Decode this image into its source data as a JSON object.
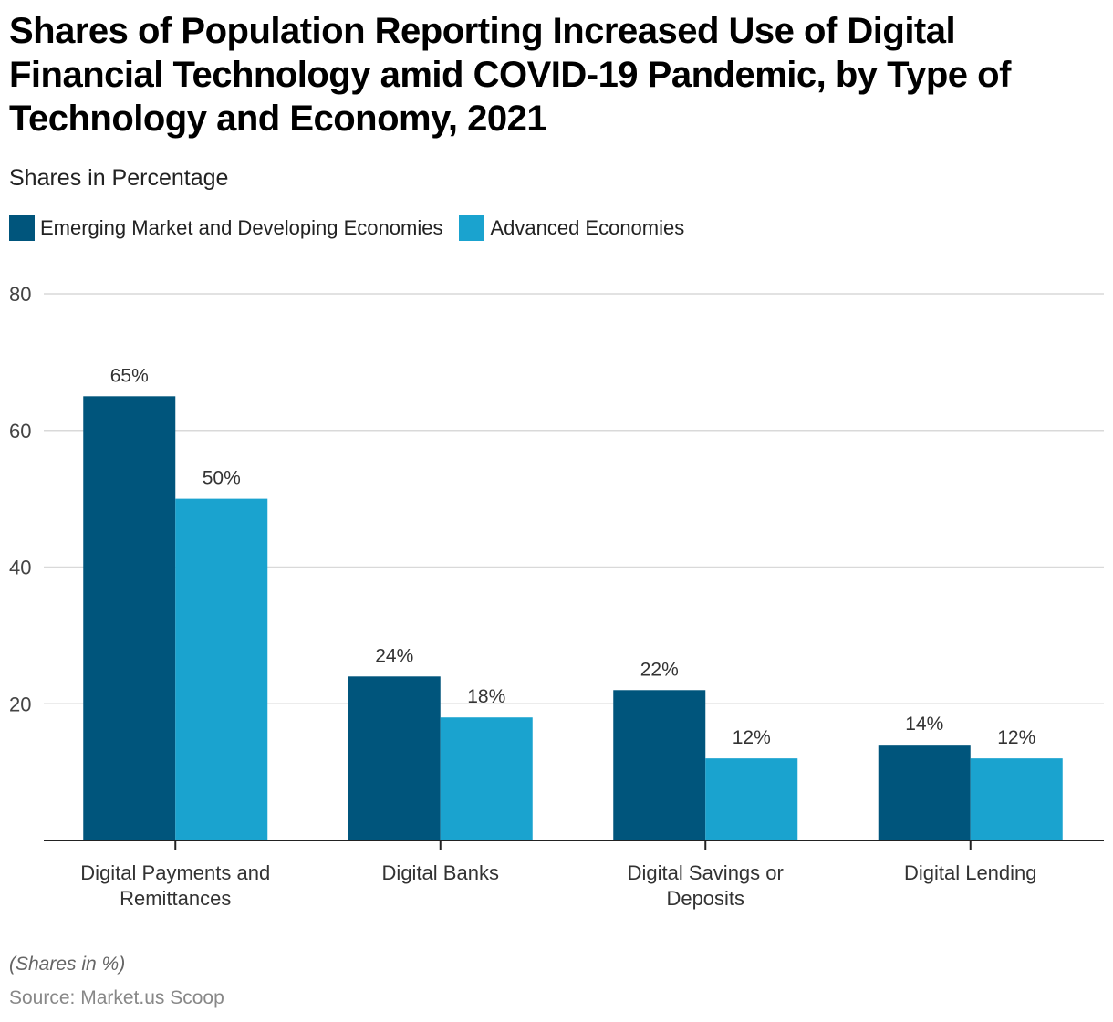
{
  "header": {
    "title": "Shares of Population Reporting Increased Use of Digital Financial Technology amid COVID-19 Pandemic, by Type of Technology and Economy, 2021",
    "subtitle": "Shares in Percentage"
  },
  "footer": {
    "note": "(Shares in %)",
    "source": "Source: Market.us Scoop"
  },
  "colors": {
    "emerging": "#00557C",
    "advanced": "#1AA3CF",
    "grid": "#D9D9D9",
    "axis": "#222222",
    "text": "#333333"
  },
  "chart_data": {
    "type": "bar",
    "title": "Shares of Population Reporting Increased Use of Digital Financial Technology amid COVID-19 Pandemic, by Type of Technology and Economy, 2021",
    "subtitle": "Shares in Percentage",
    "xlabel": "",
    "ylabel": "",
    "categories": [
      "Digital Payments and Remittances",
      "Digital Banks",
      "Digital Savings or Deposits",
      "Digital Lending"
    ],
    "category_lines": [
      [
        "Digital Payments and",
        "Remittances"
      ],
      [
        "Digital Banks"
      ],
      [
        "Digital Savings or",
        "Deposits"
      ],
      [
        "Digital Lending"
      ]
    ],
    "series": [
      {
        "name": "Emerging Market and Developing Economies",
        "values": [
          65,
          24,
          22,
          14
        ],
        "labels": [
          "65%",
          "24%",
          "22%",
          "14%"
        ]
      },
      {
        "name": "Advanced Economies",
        "values": [
          50,
          18,
          12,
          12
        ],
        "labels": [
          "50%",
          "18%",
          "12%",
          "12%"
        ]
      }
    ],
    "ylim": [
      0,
      80
    ],
    "yticks": [
      20,
      40,
      60,
      80
    ],
    "grid": true,
    "legend_position": "top-left"
  }
}
